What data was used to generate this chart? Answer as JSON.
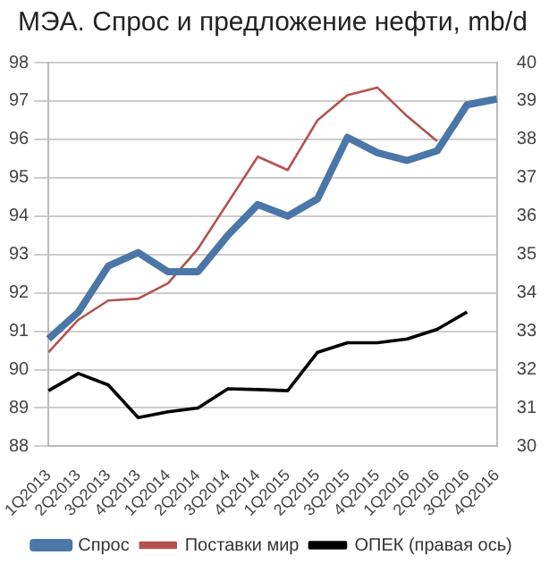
{
  "chart_data": {
    "type": "line",
    "title": "МЭА. Спрос и предложение нефти, mb/d",
    "categories": [
      "1Q2013",
      "2Q2013",
      "3Q2013",
      "4Q2013",
      "1Q2014",
      "2Q2014",
      "3Q2014",
      "4Q2014",
      "1Q2015",
      "2Q2015",
      "3Q2015",
      "4Q2015",
      "1Q2016",
      "2Q2016",
      "3Q2016",
      "4Q2016"
    ],
    "series": [
      {
        "name": "Спрос",
        "color": "#4a76a8",
        "values": [
          90.8,
          91.5,
          92.7,
          93.05,
          92.55,
          92.55,
          93.5,
          94.3,
          94.0,
          94.45,
          96.05,
          95.65,
          95.45,
          95.7,
          96.9,
          97.05
        ]
      },
      {
        "name": "Поставки мир",
        "color": "#b5524d",
        "values": [
          90.45,
          91.3,
          91.8,
          91.85,
          92.25,
          93.15,
          94.35,
          95.55,
          95.2,
          96.5,
          97.15,
          97.35,
          96.6,
          95.95,
          null,
          null
        ]
      },
      {
        "name": "ОПЕК (правая ось)",
        "color": "#000000",
        "axis": "y2",
        "values": [
          31.45,
          31.9,
          31.6,
          30.75,
          30.9,
          31.0,
          31.5,
          31.48,
          31.45,
          32.45,
          32.7,
          32.7,
          32.8,
          33.05,
          33.5,
          null
        ]
      }
    ],
    "ylim": [
      88,
      98
    ],
    "yticks": [
      88,
      89,
      90,
      91,
      92,
      93,
      94,
      95,
      96,
      97,
      98
    ],
    "y2lim": [
      30,
      40
    ],
    "y2ticks": [
      30,
      31,
      32,
      33,
      34,
      35,
      36,
      37,
      38,
      39,
      40
    ],
    "grid": "y",
    "legend": "bottom",
    "marker": "none",
    "line_style": "solid"
  }
}
